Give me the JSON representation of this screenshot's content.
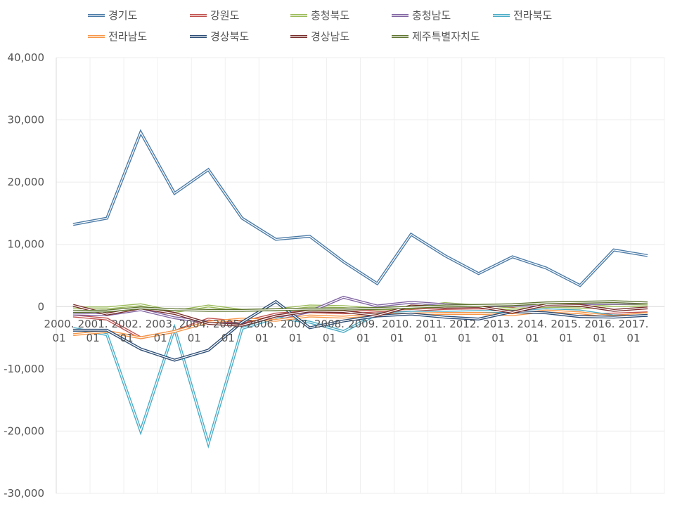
{
  "chart_data": {
    "type": "line",
    "title": "",
    "xlabel": "",
    "ylabel": "",
    "ylim": [
      -30000,
      40000
    ],
    "y_ticks": [
      40000,
      30000,
      20000,
      10000,
      0,
      -10000,
      -20000,
      -30000
    ],
    "y_tick_labels": [
      "40,000",
      "30,000",
      "20,000",
      "10,000",
      "0",
      "-10,000",
      "-20,000",
      "-30,000"
    ],
    "categories": [
      [
        "2000.",
        "01"
      ],
      [
        "2001.",
        "01"
      ],
      [
        "2002.",
        "01"
      ],
      [
        "2003.",
        "01"
      ],
      [
        "2004.",
        "01"
      ],
      [
        "2005.",
        "01"
      ],
      [
        "2006.",
        "01"
      ],
      [
        "2007.",
        "01"
      ],
      [
        "2008.",
        "01"
      ],
      [
        "2009.",
        "01"
      ],
      [
        "2010.",
        "01"
      ],
      [
        "2011.",
        "01"
      ],
      [
        "2012.",
        "01"
      ],
      [
        "2013.",
        "01"
      ],
      [
        "2014.",
        "01"
      ],
      [
        "2015.",
        "01"
      ],
      [
        "2016.",
        "01"
      ],
      [
        "2017.",
        "01"
      ]
    ],
    "grid": true,
    "legend_position": "top",
    "series": [
      {
        "name": "경기도",
        "color": "#4a7aa6",
        "values": [
          13200,
          14200,
          28000,
          18200,
          22000,
          14200,
          10800,
          11300,
          7200,
          3700,
          11600,
          8200,
          5300,
          8000,
          6200,
          3400,
          9100,
          8200
        ]
      },
      {
        "name": "강원도",
        "color": "#c0504d",
        "values": [
          -1500,
          -2000,
          -5000,
          -4000,
          -2000,
          -2500,
          -1200,
          -800,
          -1000,
          -700,
          -600,
          -300,
          -200,
          -300,
          -900,
          -1300,
          -1200,
          -1000
        ]
      },
      {
        "name": "충청북도",
        "color": "#9bbb59",
        "values": [
          -200,
          -200,
          300,
          -800,
          100,
          -600,
          -500,
          100,
          0,
          -400,
          -200,
          500,
          100,
          -400,
          -300,
          -200,
          200,
          100
        ]
      },
      {
        "name": "충청남도",
        "color": "#8064a2",
        "values": [
          -1200,
          -1300,
          -500,
          -1800,
          -2500,
          -2900,
          -2000,
          -800,
          1500,
          100,
          700,
          300,
          100,
          200,
          300,
          500,
          500,
          600
        ]
      },
      {
        "name": "전라북도",
        "color": "#4bacc6",
        "values": [
          -3500,
          -4500,
          -20000,
          -3500,
          -22000,
          -3500,
          -1800,
          -2500,
          -4000,
          -1200,
          -900,
          -900,
          -800,
          -800,
          -500,
          -700,
          -1500,
          -1400
        ]
      },
      {
        "name": "전라남도",
        "color": "#f79646",
        "values": [
          -4500,
          -4000,
          -5000,
          -4000,
          -2500,
          -2000,
          -2200,
          -1500,
          -1700,
          -1300,
          -1200,
          -1100,
          -1100,
          -1300,
          -700,
          -1000,
          -1600,
          -1100
        ]
      },
      {
        "name": "경상북도",
        "color": "#2c4d75",
        "values": [
          -3800,
          -3800,
          -6800,
          -8600,
          -7000,
          -2500,
          800,
          -3400,
          -2300,
          -1500,
          -1200,
          -1700,
          -2000,
          -800,
          -1000,
          -1600,
          -1700,
          -1400
        ]
      },
      {
        "name": "경상남도",
        "color": "#772c2a",
        "values": [
          200,
          -1200,
          -200,
          -1100,
          -2700,
          -3000,
          -1500,
          -700,
          -800,
          -1400,
          100,
          -100,
          0,
          -900,
          300,
          200,
          -600,
          -200
        ]
      },
      {
        "name": "제주특별자치도",
        "color": "#5f7530",
        "values": [
          -800,
          -700,
          -200,
          -500,
          -600,
          -600,
          -500,
          -400,
          -400,
          -300,
          -100,
          100,
          200,
          300,
          600,
          700,
          800,
          600
        ]
      }
    ]
  }
}
